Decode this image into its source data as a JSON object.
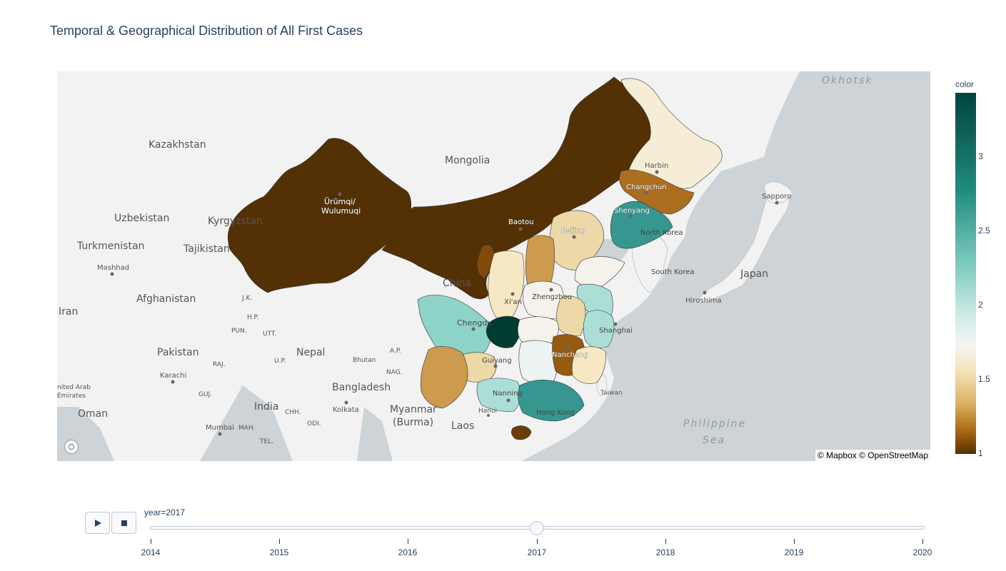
{
  "title": "Temporal & Geographical Distribution of All First Cases",
  "map": {
    "attribution": "© Mapbox © OpenStreetMap",
    "country_labels": [
      "Kazakhstan",
      "Mongolia",
      "Uzbekistan",
      "Kyrgyzstan",
      "Turkmenistan",
      "Tajikistan",
      "Afghanistan",
      "Iran",
      "Pakistan",
      "Nepal",
      "India",
      "Bangladesh",
      "Myanmar",
      "(Burma)",
      "Laos",
      "Oman",
      "China",
      "Japan",
      "North Korea",
      "South Korea",
      "Bhutan",
      "Taiwan",
      "Hong Kong",
      "nited Arab",
      "Emirates"
    ],
    "city_labels": [
      "Ürümqi/",
      "Wulumuqi",
      "Baotou",
      "Beijing",
      "Shenyang",
      "Changchun",
      "Harbin",
      "Xi'an",
      "Zhengzhou",
      "Chengdu",
      "Guiyang",
      "Nanning",
      "Nanchang",
      "Shanghai",
      "Hanoi",
      "Hiroshima",
      "Sapporo",
      "Mashhad",
      "Karachi",
      "Mumbai",
      "Kolkata"
    ],
    "region_abbr": [
      "J.K.",
      "H.P.",
      "PUN.",
      "UTT.",
      "U.P.",
      "RAJ.",
      "GUJ.",
      "MAH.",
      "CHH.",
      "ODI.",
      "TEL.",
      "A.P.",
      "NAG."
    ],
    "seas": [
      "Okhotsk",
      "Philippine",
      "Sea"
    ],
    "provinces": [
      {
        "name": "Xinjiang",
        "value": 1.0
      },
      {
        "name": "Inner Mongolia",
        "value": 1.0
      },
      {
        "name": "Gansu",
        "value": 1.0
      },
      {
        "name": "Ningxia",
        "value": 1.2
      },
      {
        "name": "Heilongjiang",
        "value": 2.1
      },
      {
        "name": "Jilin",
        "value": 1.4
      },
      {
        "name": "Liaoning",
        "value": 3.0
      },
      {
        "name": "Beijing",
        "value": 3.5
      },
      {
        "name": "Hebei",
        "value": 1.9
      },
      {
        "name": "Shanxi",
        "value": 1.6
      },
      {
        "name": "Shaanxi",
        "value": 2.0
      },
      {
        "name": "Shandong",
        "value": 2.2
      },
      {
        "name": "Henan",
        "value": 2.2
      },
      {
        "name": "Jiangsu",
        "value": 2.6
      },
      {
        "name": "Anhui",
        "value": 1.9
      },
      {
        "name": "Sichuan",
        "value": 2.7
      },
      {
        "name": "Chongqing",
        "value": 3.5
      },
      {
        "name": "Hubei",
        "value": 2.2
      },
      {
        "name": "Guizhou",
        "value": 1.9
      },
      {
        "name": "Hunan",
        "value": 2.3
      },
      {
        "name": "Jiangxi",
        "value": 1.3
      },
      {
        "name": "Zhejiang",
        "value": 2.6
      },
      {
        "name": "Fujian",
        "value": 2.0
      },
      {
        "name": "Yunnan",
        "value": 1.6
      },
      {
        "name": "Guangxi",
        "value": 2.6
      },
      {
        "name": "Guangdong",
        "value": 3.0
      },
      {
        "name": "Hainan",
        "value": 1.1
      }
    ]
  },
  "colorbar": {
    "title": "color",
    "ticks": [
      "3",
      "2.5",
      "2",
      "1.5",
      "1"
    ],
    "range": [
      1,
      3.5
    ],
    "colors": [
      "#543005",
      "#8c510a",
      "#bf812d",
      "#dfc27d",
      "#f6e8c3",
      "#f5f5f5",
      "#c7eae5",
      "#80cdc1",
      "#35978f",
      "#01665e",
      "#003c30"
    ]
  },
  "controls": {
    "slider_label": "year=2017",
    "years": [
      "2014",
      "2015",
      "2016",
      "2017",
      "2018",
      "2019",
      "2020"
    ],
    "active_year": 2017,
    "play_icon": "play-icon",
    "stop_icon": "stop-icon"
  }
}
